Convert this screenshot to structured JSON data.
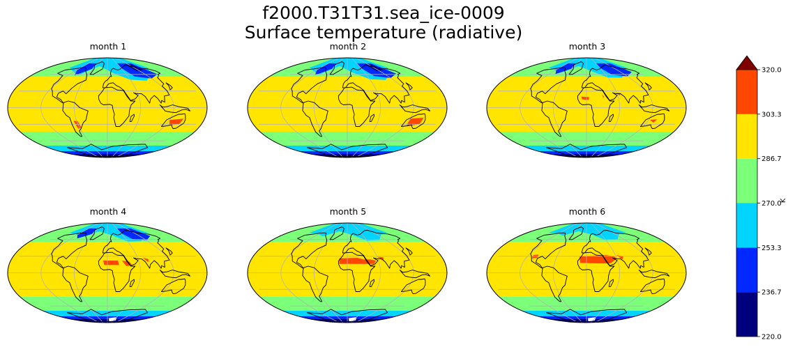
{
  "figure": {
    "title_line1": "f2000.T31T31.sea_ice-0009",
    "title_line2": "Surface temperature (radiative)"
  },
  "panels": [
    {
      "title": "month 1"
    },
    {
      "title": "month 2"
    },
    {
      "title": "month 3"
    },
    {
      "title": "month 4"
    },
    {
      "title": "month 5"
    },
    {
      "title": "month 6"
    }
  ],
  "colorbar": {
    "label": "K",
    "ticks": [
      "220.0",
      "236.7",
      "253.3",
      "270.0",
      "286.7",
      "303.3",
      "320.0"
    ],
    "colors": [
      "#00007f",
      "#0028ff",
      "#00d4ff",
      "#7cff79",
      "#ffe500",
      "#ff4700"
    ],
    "extend_color": "#7f0000",
    "extend": "max"
  },
  "chart_data": {
    "type": "heatmap",
    "projection": "mollweide",
    "variable": "Surface temperature (radiative)",
    "units": "K",
    "levels": [
      220.0,
      236.7,
      253.3,
      270.0,
      286.7,
      303.3,
      320.0
    ],
    "panels": [
      "month 1",
      "month 2",
      "month 3",
      "month 4",
      "month 5",
      "month 6"
    ],
    "colors": {
      "tropics": "#ffe500",
      "midlat": "#7cff79",
      "cold": "#00d4ff",
      "vcold": "#0028ff",
      "extreme": "#00007f",
      "hot": "#ff4700",
      "coast": "#000000",
      "grid": "#b3b3b3"
    }
  }
}
